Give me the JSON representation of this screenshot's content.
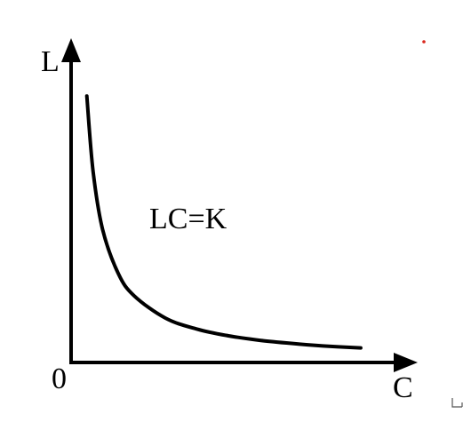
{
  "chart_data": {
    "type": "line",
    "title": "",
    "xlabel": "C",
    "ylabel": "L",
    "origin_label": "0",
    "annotation": "LC=K",
    "series": [
      {
        "curve": "hyperbola",
        "x": [
          0.5,
          0.7,
          1.0,
          1.5,
          2.0,
          3.0,
          4.0,
          5.0,
          6.0,
          7.0,
          8.0,
          9.2
        ],
        "y": [
          9.5,
          6.8,
          4.75,
          3.17,
          2.38,
          1.58,
          1.19,
          0.95,
          0.79,
          0.68,
          0.59,
          0.52
        ]
      }
    ],
    "xlim": [
      0,
      10.5
    ],
    "ylim": [
      0,
      11.5
    ],
    "grid": false,
    "axis_ticks": false,
    "colors": {
      "axes": "#000000",
      "curve": "#000000",
      "marker": "#d9261c"
    }
  }
}
